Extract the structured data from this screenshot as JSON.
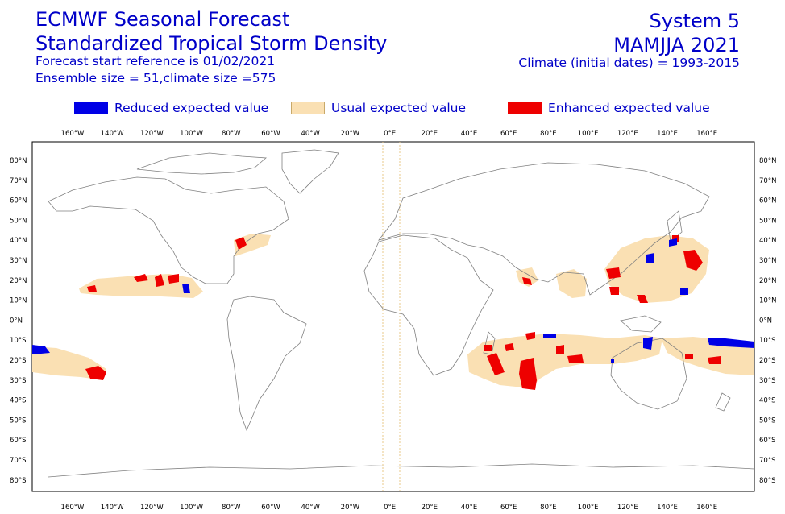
{
  "header": {
    "title_line1": "ECMWF Seasonal Forecast",
    "title_line2": "Standardized Tropical Storm Density",
    "subtitle_line1": "Forecast start reference is 01/02/2021",
    "subtitle_line2": "Ensemble size = 51,climate size =575",
    "system": "System 5",
    "period": "MAMJJA 2021",
    "climate": "Climate (initial dates) = 1993-2015"
  },
  "legend": [
    {
      "label": "Reduced expected value",
      "color": "#0000e6"
    },
    {
      "label": "Usual expected value",
      "color": "#fae0b3"
    },
    {
      "label": "Enhanced expected value",
      "color": "#ee0000"
    }
  ],
  "map": {
    "lon_ticks": [
      "160°W",
      "140°W",
      "120°W",
      "100°W",
      "80°W",
      "60°W",
      "40°W",
      "20°W",
      "0°E",
      "20°E",
      "40°E",
      "60°E",
      "80°E",
      "100°E",
      "120°E",
      "140°E",
      "160°E"
    ],
    "lat_ticks": [
      "80°N",
      "70°N",
      "60°N",
      "50°N",
      "40°N",
      "30°N",
      "20°N",
      "10°N",
      "0°N",
      "10°S",
      "20°S",
      "30°S",
      "40°S",
      "50°S",
      "60°S",
      "70°S",
      "80°S"
    ]
  }
}
